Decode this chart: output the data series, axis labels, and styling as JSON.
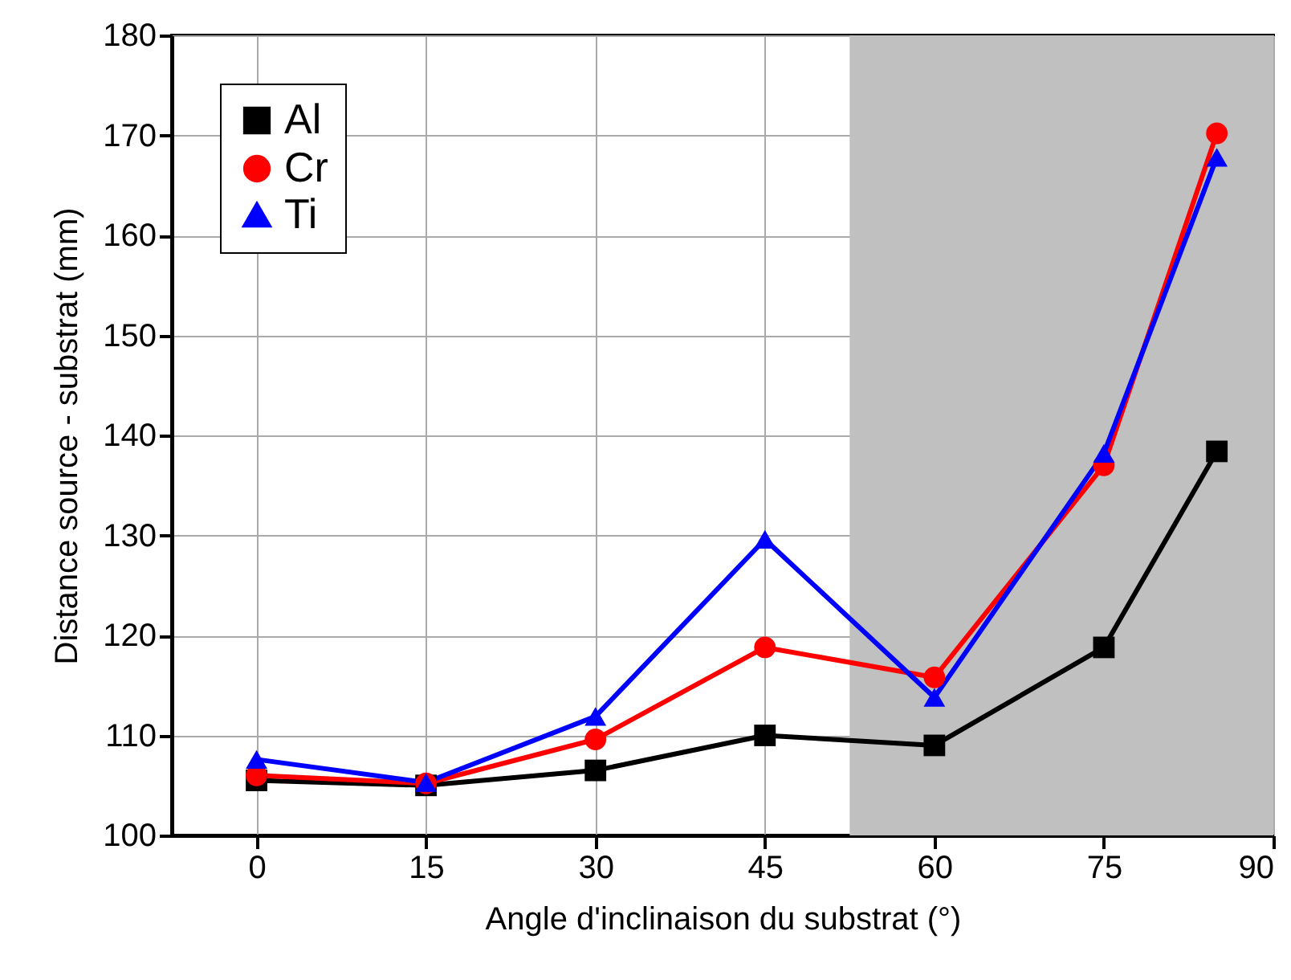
{
  "chart_data": {
    "type": "line",
    "xlabel": "Angle d'inclinaison du substrat (°)",
    "ylabel": "Distance source - substrat (mm)",
    "x": [
      0,
      15,
      30,
      45,
      60,
      75,
      85
    ],
    "series": [
      {
        "name": "Al",
        "color": "#000000",
        "marker": "square",
        "values": [
          105.5,
          105,
          106.5,
          110,
          109,
          118.8,
          138.4
        ]
      },
      {
        "name": "Cr",
        "color": "#ff0000",
        "marker": "circle",
        "values": [
          106,
          105.2,
          109.6,
          118.8,
          115.8,
          137,
          170.2
        ]
      },
      {
        "name": "Ti",
        "color": "#0000ff",
        "marker": "triangle",
        "values": [
          107.6,
          105.3,
          111.9,
          129.6,
          113.8,
          138.2,
          167.8
        ]
      }
    ],
    "xlim": [
      -7.5,
      90
    ],
    "xticks": [
      0,
      15,
      30,
      45,
      60,
      75,
      90
    ],
    "ylim": [
      100,
      180
    ],
    "yticks": [
      100,
      110,
      120,
      130,
      140,
      150,
      160,
      170,
      180
    ],
    "bands": [
      {
        "axis": "x",
        "from": 52.5,
        "to": 90,
        "color": "#c0c0c0"
      }
    ],
    "grid": true,
    "legend": "top left",
    "line_style": "solid"
  }
}
